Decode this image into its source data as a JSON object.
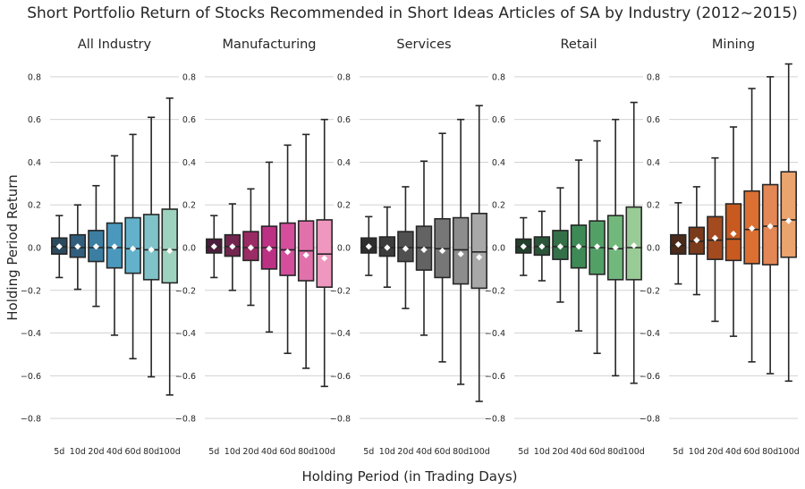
{
  "chart_data": {
    "type": "box",
    "title": "Short Portfolio Return of Stocks Recommended in Short Ideas Articles of SA by Industry (2012~2015)",
    "xlabel": "Holding Period (in Trading Days)",
    "ylabel": "Holding Period Return",
    "ylim": [
      -0.9,
      0.9
    ],
    "yticks": [
      "−0.8",
      "−0.6",
      "−0.4",
      "−0.2",
      "0.0",
      "0.2",
      "0.4",
      "0.6",
      "0.8"
    ],
    "ytick_values": [
      -0.8,
      -0.6,
      -0.4,
      -0.2,
      0.0,
      0.2,
      0.4,
      0.6,
      0.8
    ],
    "categories": [
      "5d",
      "10d",
      "20d",
      "40d",
      "60d",
      "80d",
      "100d"
    ],
    "grid": "horizontal",
    "panels": [
      {
        "name": "All Industry",
        "colors": [
          "#2b4a5e",
          "#325e7e",
          "#3b7ea1",
          "#4a98bd",
          "#63b1ca",
          "#7fc3c8",
          "#9dd3be"
        ],
        "boxes": [
          {
            "whislo": -0.14,
            "q1": -0.03,
            "med": 0.005,
            "q3": 0.045,
            "whishi": 0.15,
            "mean": 0.005
          },
          {
            "whislo": -0.195,
            "q1": -0.045,
            "med": 0.0,
            "q3": 0.06,
            "whishi": 0.2,
            "mean": 0.005
          },
          {
            "whislo": -0.275,
            "q1": -0.065,
            "med": 0.0,
            "q3": 0.08,
            "whishi": 0.29,
            "mean": 0.005
          },
          {
            "whislo": -0.41,
            "q1": -0.095,
            "med": 0.0,
            "q3": 0.115,
            "whishi": 0.43,
            "mean": 0.005
          },
          {
            "whislo": -0.52,
            "q1": -0.12,
            "med": -0.005,
            "q3": 0.14,
            "whishi": 0.53,
            "mean": -0.005
          },
          {
            "whislo": -0.605,
            "q1": -0.15,
            "med": -0.01,
            "q3": 0.155,
            "whishi": 0.61,
            "mean": -0.01
          },
          {
            "whislo": -0.69,
            "q1": -0.165,
            "med": -0.01,
            "q3": 0.18,
            "whishi": 0.7,
            "mean": -0.015
          }
        ]
      },
      {
        "name": "Manufacturing",
        "colors": [
          "#4a1e3c",
          "#72254f",
          "#9a2b64",
          "#bd3185",
          "#d44e9c",
          "#e071ab",
          "#ef98bf"
        ],
        "boxes": [
          {
            "whislo": -0.14,
            "q1": -0.025,
            "med": 0.005,
            "q3": 0.04,
            "whishi": 0.15,
            "mean": 0.005
          },
          {
            "whislo": -0.2,
            "q1": -0.04,
            "med": 0.005,
            "q3": 0.06,
            "whishi": 0.205,
            "mean": 0.005
          },
          {
            "whislo": -0.27,
            "q1": -0.06,
            "med": 0.0,
            "q3": 0.075,
            "whishi": 0.275,
            "mean": 0.0
          },
          {
            "whislo": -0.395,
            "q1": -0.1,
            "med": 0.0,
            "q3": 0.1,
            "whishi": 0.4,
            "mean": -0.005
          },
          {
            "whislo": -0.495,
            "q1": -0.13,
            "med": -0.01,
            "q3": 0.115,
            "whishi": 0.48,
            "mean": -0.02
          },
          {
            "whislo": -0.565,
            "q1": -0.155,
            "med": -0.015,
            "q3": 0.125,
            "whishi": 0.53,
            "mean": -0.035
          },
          {
            "whislo": -0.65,
            "q1": -0.185,
            "med": -0.03,
            "q3": 0.13,
            "whishi": 0.6,
            "mean": -0.05
          }
        ]
      },
      {
        "name": "Services",
        "colors": [
          "#2e2e2e",
          "#3c3c3c",
          "#505050",
          "#636363",
          "#777777",
          "#8d8d8d",
          "#a8a8a8"
        ],
        "boxes": [
          {
            "whislo": -0.13,
            "q1": -0.025,
            "med": 0.005,
            "q3": 0.045,
            "whishi": 0.145,
            "mean": 0.005
          },
          {
            "whislo": -0.185,
            "q1": -0.04,
            "med": 0.0,
            "q3": 0.05,
            "whishi": 0.19,
            "mean": 0.0
          },
          {
            "whislo": -0.285,
            "q1": -0.065,
            "med": 0.0,
            "q3": 0.075,
            "whishi": 0.285,
            "mean": -0.005
          },
          {
            "whislo": -0.41,
            "q1": -0.105,
            "med": 0.0,
            "q3": 0.1,
            "whishi": 0.405,
            "mean": -0.01
          },
          {
            "whislo": -0.535,
            "q1": -0.14,
            "med": -0.005,
            "q3": 0.135,
            "whishi": 0.535,
            "mean": -0.015
          },
          {
            "whislo": -0.64,
            "q1": -0.17,
            "med": -0.01,
            "q3": 0.14,
            "whishi": 0.6,
            "mean": -0.03
          },
          {
            "whislo": -0.72,
            "q1": -0.19,
            "med": -0.02,
            "q3": 0.16,
            "whishi": 0.665,
            "mean": -0.045
          }
        ]
      },
      {
        "name": "Retail",
        "colors": [
          "#22402c",
          "#2b5639",
          "#347048",
          "#3e8a56",
          "#52a066",
          "#72b87c",
          "#98cb95"
        ],
        "boxes": [
          {
            "whislo": -0.13,
            "q1": -0.025,
            "med": 0.005,
            "q3": 0.04,
            "whishi": 0.14,
            "mean": 0.005
          },
          {
            "whislo": -0.155,
            "q1": -0.035,
            "med": 0.005,
            "q3": 0.05,
            "whishi": 0.17,
            "mean": 0.005
          },
          {
            "whislo": -0.255,
            "q1": -0.055,
            "med": 0.005,
            "q3": 0.08,
            "whishi": 0.28,
            "mean": 0.005
          },
          {
            "whislo": -0.39,
            "q1": -0.095,
            "med": 0.005,
            "q3": 0.105,
            "whishi": 0.41,
            "mean": 0.005
          },
          {
            "whislo": -0.495,
            "q1": -0.125,
            "med": 0.0,
            "q3": 0.125,
            "whishi": 0.5,
            "mean": 0.005
          },
          {
            "whislo": -0.6,
            "q1": -0.15,
            "med": -0.005,
            "q3": 0.15,
            "whishi": 0.6,
            "mean": 0.0
          },
          {
            "whislo": -0.635,
            "q1": -0.15,
            "med": 0.0,
            "q3": 0.19,
            "whishi": 0.68,
            "mean": 0.01
          }
        ]
      },
      {
        "name": "Mining",
        "colors": [
          "#4a2a1a",
          "#7a3b1c",
          "#a34a1f",
          "#c85a20",
          "#db7032",
          "#e28755",
          "#eca46f"
        ],
        "boxes": [
          {
            "whislo": -0.17,
            "q1": -0.03,
            "med": 0.01,
            "q3": 0.06,
            "whishi": 0.21,
            "mean": 0.015
          },
          {
            "whislo": -0.22,
            "q1": -0.03,
            "med": 0.03,
            "q3": 0.095,
            "whishi": 0.285,
            "mean": 0.035
          },
          {
            "whislo": -0.345,
            "q1": -0.055,
            "med": 0.035,
            "q3": 0.145,
            "whishi": 0.42,
            "mean": 0.045
          },
          {
            "whislo": -0.415,
            "q1": -0.06,
            "med": 0.04,
            "q3": 0.205,
            "whishi": 0.565,
            "mean": 0.065
          },
          {
            "whislo": -0.535,
            "q1": -0.075,
            "med": 0.085,
            "q3": 0.265,
            "whishi": 0.745,
            "mean": 0.09
          },
          {
            "whislo": -0.59,
            "q1": -0.08,
            "med": 0.1,
            "q3": 0.295,
            "whishi": 0.8,
            "mean": 0.1
          },
          {
            "whislo": -0.625,
            "q1": -0.045,
            "med": 0.13,
            "q3": 0.355,
            "whishi": 0.86,
            "mean": 0.125
          }
        ]
      }
    ]
  }
}
